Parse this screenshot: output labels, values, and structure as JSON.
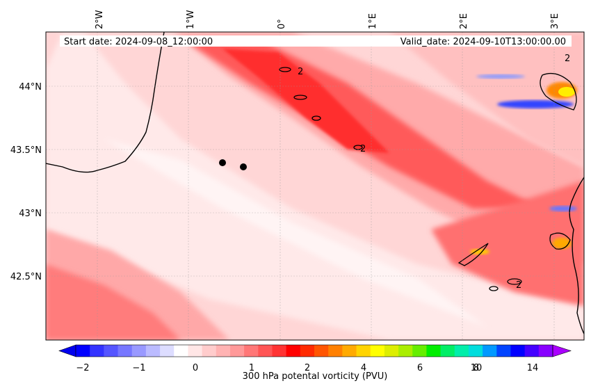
{
  "header": {
    "start_date": "Start date: 2024-09-08_12:00:00",
    "valid_date": "Valid_date: 2024-09-10T13:00:00.00"
  },
  "map": {
    "lon_ticks": [
      "2°W",
      "1°W",
      "0°",
      "1°E",
      "2°E",
      "3°E"
    ],
    "lat_ticks": [
      "44°N",
      "43.5°N",
      "43°N",
      "42.5°N"
    ],
    "markers": 2,
    "contour_label": "2"
  },
  "colorbar": {
    "label": "300 hPa potental vorticity (PVU)",
    "ticks": [
      "−2",
      "−1",
      "0",
      "1",
      "2",
      "4",
      "6",
      "8",
      "10",
      "14"
    ],
    "colors": [
      "#0000ff",
      "#3333ff",
      "#5555ff",
      "#7777ff",
      "#9999ff",
      "#bbbbff",
      "#ddddff",
      "#ffffff",
      "#ffe6e6",
      "#ffcccc",
      "#ffb3b3",
      "#ff9999",
      "#ff7777",
      "#ff5555",
      "#ff3333",
      "#ff0000",
      "#ff2a00",
      "#ff5500",
      "#ff8000",
      "#ffaa00",
      "#ffd400",
      "#ffff00",
      "#ddee00",
      "#aaee00",
      "#66ee00",
      "#00ee00",
      "#00ee66",
      "#00eeaa",
      "#00dddd",
      "#0099ff",
      "#0044ff",
      "#0000ff",
      "#4400ff",
      "#8800ff"
    ],
    "extend_low": "#0000ee",
    "extend_high": "#aa00ff"
  }
}
